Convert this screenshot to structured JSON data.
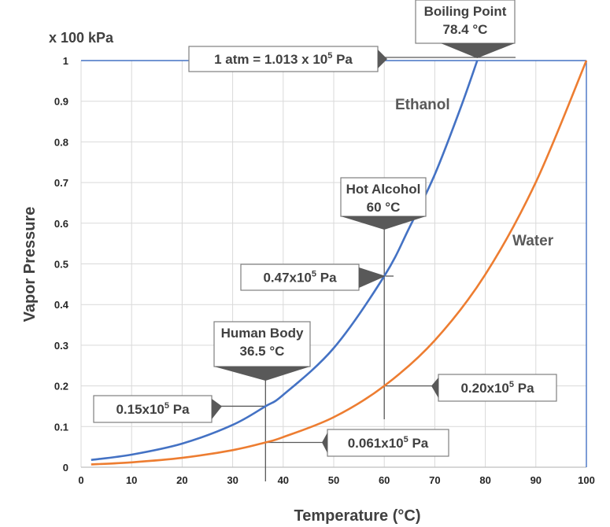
{
  "chart_data": {
    "type": "line",
    "unit_label": "x 100 kPa",
    "xlabel": "Temperature (°C)",
    "ylabel": "Vapor Pressure",
    "xlim": [
      0,
      100
    ],
    "ylim": [
      0,
      1
    ],
    "x_ticks": [
      "0",
      "10",
      "20",
      "30",
      "40",
      "50",
      "60",
      "70",
      "80",
      "90",
      "100"
    ],
    "y_ticks": [
      "0",
      "0.1",
      "0.2",
      "0.3",
      "0.4",
      "0.5",
      "0.6",
      "0.7",
      "0.8",
      "0.9",
      "1"
    ],
    "grid": true,
    "series": [
      {
        "name": "Ethanol",
        "color": "#4472c4",
        "x": [
          2,
          10,
          20,
          30,
          36.5,
          40,
          50,
          60,
          65,
          70,
          75,
          78.4
        ],
        "y": [
          0.018,
          0.031,
          0.058,
          0.104,
          0.15,
          0.178,
          0.293,
          0.47,
          0.59,
          0.72,
          0.88,
          1.0
        ]
      },
      {
        "name": "Water",
        "color": "#ed7d31",
        "x": [
          2,
          10,
          20,
          30,
          36.5,
          40,
          50,
          60,
          70,
          80,
          90,
          100
        ],
        "y": [
          0.007,
          0.012,
          0.023,
          0.042,
          0.061,
          0.074,
          0.123,
          0.2,
          0.312,
          0.474,
          0.701,
          1.0
        ]
      }
    ],
    "annotations": {
      "atm": {
        "text": "1 atm = 1.013 x 10",
        "sup": "5",
        "tail": " Pa"
      },
      "boiling": {
        "line1": "Boiling Point",
        "line2": "78.4 °C",
        "x": 78.4,
        "y": 1.0
      },
      "hot_alcohol": {
        "line1": "Hot Alcohol",
        "line2": "60 °C",
        "x": 60
      },
      "human_body": {
        "line1": "Human Body",
        "line2": "36.5 °C",
        "x": 36.5
      },
      "ethanol_60": {
        "text": "0.47x10",
        "sup": "5",
        "tail": " Pa",
        "x": 60,
        "y": 0.47
      },
      "ethanol_36": {
        "text": "0.15x10",
        "sup": "5",
        "tail": " Pa",
        "x": 36.5,
        "y": 0.15
      },
      "water_60": {
        "text": "0.20x10",
        "sup": "5",
        "tail": " Pa",
        "x": 60,
        "y": 0.2
      },
      "water_36": {
        "text": "0.061x10",
        "sup": "5",
        "tail": " Pa",
        "x": 36.5,
        "y": 0.061
      }
    }
  }
}
